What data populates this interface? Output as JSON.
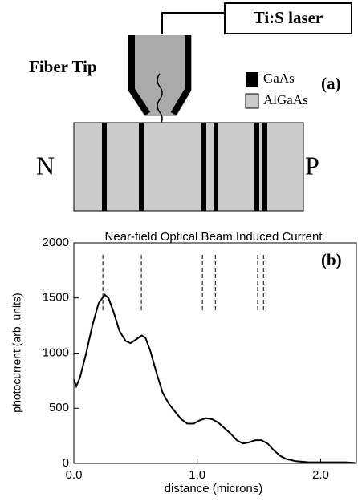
{
  "diagram": {
    "laser": "Ti:S laser",
    "fiber": "Fiber Tip",
    "panel": "(a)",
    "legend": [
      "GaAs",
      "AlGaAs"
    ],
    "left": "N",
    "right": "P"
  },
  "chart_data": {
    "type": "line",
    "title": "Near-field Optical Beam Induced Current",
    "annotation": "(b)",
    "xlabel": "distance (microns)",
    "ylabel": "photocurrent (arb. units)",
    "x": [
      0.0,
      0.02,
      0.05,
      0.1,
      0.15,
      0.2,
      0.25,
      0.28,
      0.32,
      0.37,
      0.42,
      0.46,
      0.5,
      0.55,
      0.58,
      0.62,
      0.67,
      0.72,
      0.77,
      0.82,
      0.87,
      0.92,
      0.97,
      1.02,
      1.07,
      1.12,
      1.17,
      1.22,
      1.27,
      1.32,
      1.37,
      1.42,
      1.47,
      1.52,
      1.57,
      1.62,
      1.67,
      1.72,
      1.8,
      1.9,
      2.0,
      2.1,
      2.2,
      2.28
    ],
    "values": [
      760,
      700,
      780,
      1000,
      1250,
      1450,
      1530,
      1500,
      1380,
      1200,
      1110,
      1090,
      1120,
      1160,
      1140,
      1020,
      820,
      640,
      540,
      470,
      400,
      360,
      360,
      390,
      410,
      400,
      370,
      320,
      270,
      210,
      180,
      190,
      210,
      210,
      180,
      120,
      70,
      40,
      20,
      10,
      10,
      10,
      10,
      5
    ],
    "color": "#000000",
    "markers": [
      0.235,
      0.547,
      1.042,
      1.147,
      1.49,
      1.537
    ],
    "xlim": [
      0,
      2.29
    ],
    "ylim": [
      0,
      2000
    ],
    "xticks": [
      {
        "value": 0,
        "label": "0.0"
      },
      {
        "value": 1,
        "label": "1.0"
      },
      {
        "value": 2,
        "label": "2.0"
      }
    ],
    "yticks": [
      0,
      500,
      1000,
      1500,
      2000
    ]
  }
}
